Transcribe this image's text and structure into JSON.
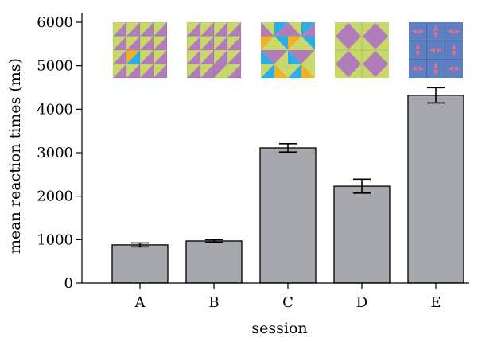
{
  "chart_data": {
    "type": "bar",
    "categories": [
      "A",
      "B",
      "C",
      "D",
      "E"
    ],
    "values": [
      880,
      970,
      3110,
      2230,
      4320
    ],
    "errors": [
      45,
      30,
      95,
      160,
      175
    ],
    "title": "",
    "xlabel": "session",
    "ylabel": "mean reaction times (ms)",
    "ylim": [
      0,
      6000
    ],
    "yticks": [
      0,
      1000,
      2000,
      3000,
      4000,
      5000,
      6000
    ],
    "grid": false,
    "bar_color": "#a7a8ad"
  },
  "stimuli": [
    {
      "session": "A",
      "icon": "triangle-pattern-stimulus-a-icon",
      "colors": [
        "#c8d86a",
        "#b07cba",
        "#2aaee8",
        "#f0b020"
      ]
    },
    {
      "session": "B",
      "icon": "triangle-pattern-stimulus-b-icon",
      "colors": [
        "#c8d86a",
        "#b07cba"
      ]
    },
    {
      "session": "C",
      "icon": "triangle-pattern-stimulus-c-icon",
      "colors": [
        "#c8d86a",
        "#b07cba",
        "#2aaee8",
        "#f0b020"
      ]
    },
    {
      "session": "D",
      "icon": "diamond-pattern-stimulus-d-icon",
      "colors": [
        "#c8d86a",
        "#b07cba"
      ]
    },
    {
      "session": "E",
      "icon": "arrow-pattern-stimulus-e-icon",
      "colors": [
        "#5d7fc4",
        "#e06f8a"
      ]
    }
  ]
}
